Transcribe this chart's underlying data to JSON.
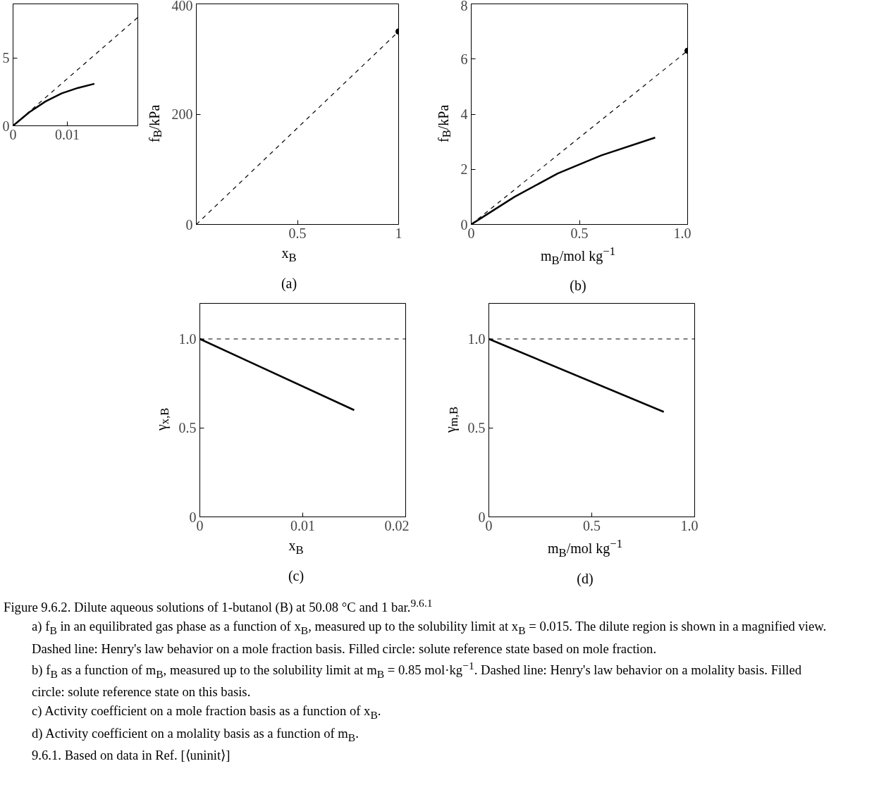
{
  "chart_data": [
    {
      "type": "line",
      "xlabel": "x$_{B}$",
      "ylabel": "f$_{B}$/kPa",
      "xlim": [
        0,
        1
      ],
      "ylim": [
        0,
        400
      ],
      "xticks": [
        0.5,
        1
      ],
      "yticks": [
        0,
        200,
        400
      ],
      "annotations": [
        "(a)"
      ],
      "grid": false,
      "series": [
        {
          "type": "line",
          "line_style": "dashed",
          "color": "#000000",
          "x": [
            0,
            1
          ],
          "values": [
            0,
            350
          ]
        },
        {
          "type": "scatter",
          "marker": "circle",
          "color": "#000000",
          "x": [
            1
          ],
          "values": [
            350
          ]
        }
      ]
    },
    {
      "type": "line",
      "xlim": [
        0,
        0.023
      ],
      "ylim": [
        0,
        9
      ],
      "xticks": [
        0,
        0.01
      ],
      "yticks": [
        0,
        5
      ],
      "grid": false,
      "series": [
        {
          "type": "line",
          "line_style": "dashed",
          "color": "#000000",
          "x": [
            0,
            0.023
          ],
          "values": [
            0,
            8.0
          ]
        },
        {
          "type": "line",
          "line_style": "solid",
          "color": "#000000",
          "x": [
            0,
            0.003,
            0.006,
            0.009,
            0.012,
            0.015
          ],
          "values": [
            0,
            1.0,
            1.8,
            2.4,
            2.8,
            3.1
          ]
        }
      ]
    },
    {
      "type": "line",
      "xlabel": "m$_{B}$/mol kg$^{−1}$",
      "ylabel": "f$_{B}$/kPa",
      "xlim": [
        0,
        1.0
      ],
      "ylim": [
        0,
        8
      ],
      "xticks": [
        0,
        0.5,
        {
          "value": 1.0,
          "label": "1.0"
        }
      ],
      "yticks": [
        0,
        2,
        4,
        6,
        8
      ],
      "annotations": [
        "(b)"
      ],
      "grid": false,
      "series": [
        {
          "type": "line",
          "line_style": "dashed",
          "color": "#000000",
          "x": [
            0,
            1.0
          ],
          "values": [
            0,
            6.3
          ]
        },
        {
          "type": "line",
          "line_style": "solid",
          "color": "#000000",
          "x": [
            0,
            0.2,
            0.4,
            0.6,
            0.85
          ],
          "values": [
            0,
            1.0,
            1.85,
            2.5,
            3.15
          ]
        },
        {
          "type": "scatter",
          "marker": "circle",
          "color": "#000000",
          "x": [
            1.0
          ],
          "values": [
            6.3
          ]
        }
      ]
    },
    {
      "type": "line",
      "xlabel": "x$_{B}$",
      "ylabel": "γ$_{x,B}$",
      "xlim": [
        0,
        0.02
      ],
      "ylim": [
        0,
        1.2
      ],
      "xticks": [
        0,
        0.01,
        0.02
      ],
      "yticks": [
        0,
        0.5,
        {
          "value": 1.0,
          "label": "1.0"
        }
      ],
      "annotations": [
        "(c)"
      ],
      "grid": false,
      "ref_lines": [
        {
          "axis": "y",
          "value": 1.0,
          "color": "#000000",
          "line_style": "dashed"
        }
      ],
      "series": [
        {
          "type": "line",
          "line_style": "solid",
          "color": "#000000",
          "x": [
            0,
            0.015
          ],
          "values": [
            1.0,
            0.6
          ]
        }
      ]
    },
    {
      "type": "line",
      "xlabel": "m$_{B}$/mol kg$^{−1}$",
      "ylabel": "γ$_{m,B}$",
      "xlim": [
        0,
        1.0
      ],
      "ylim": [
        0,
        1.2
      ],
      "xticks": [
        0,
        0.5,
        {
          "value": 1.0,
          "label": "1.0"
        }
      ],
      "yticks": [
        0,
        0.5,
        {
          "value": 1.0,
          "label": "1.0"
        }
      ],
      "annotations": [
        "(d)"
      ],
      "grid": false,
      "ref_lines": [
        {
          "axis": "y",
          "value": 1.0,
          "color": "#000000",
          "line_style": "dashed"
        }
      ],
      "series": [
        {
          "type": "line",
          "line_style": "solid",
          "color": "#000000",
          "x": [
            0,
            0.85
          ],
          "values": [
            1.0,
            0.59
          ]
        }
      ]
    },
    {
      "type": "other",
      "title": "Figure 9.6.2. Dilute aqueous solutions of 1-butanol (B) at 50.08 °C and 1 bar.$^{9.6.1}$",
      "annotations": [
        "a) f$_{B}$ in an equilibrated gas phase as a function of x$_{B}$, measured up to the solubility limit at x$_{B}$ = 0.015. The dilute region is shown in a magnified view. Dashed line: Henry's law behavior on a mole fraction basis. Filled circle: solute reference state based on mole fraction.",
        "b) f$_{B}$ as a function of m$_{B}$, measured up to the solubility limit at m$_{B}$ = 0.85 mol·kg$^{−1}$. Dashed line: Henry's law behavior on a molality basis. Filled circle: solute reference state on this basis.",
        "c) Activity coefficient on a mole fraction basis as a function of x$_{B}$.",
        "d) Activity coefficient on a molality basis as a function of m$_{B}$.",
        "9.6.1. Based on data in Ref. [⟨uninit⟩]"
      ]
    }
  ]
}
